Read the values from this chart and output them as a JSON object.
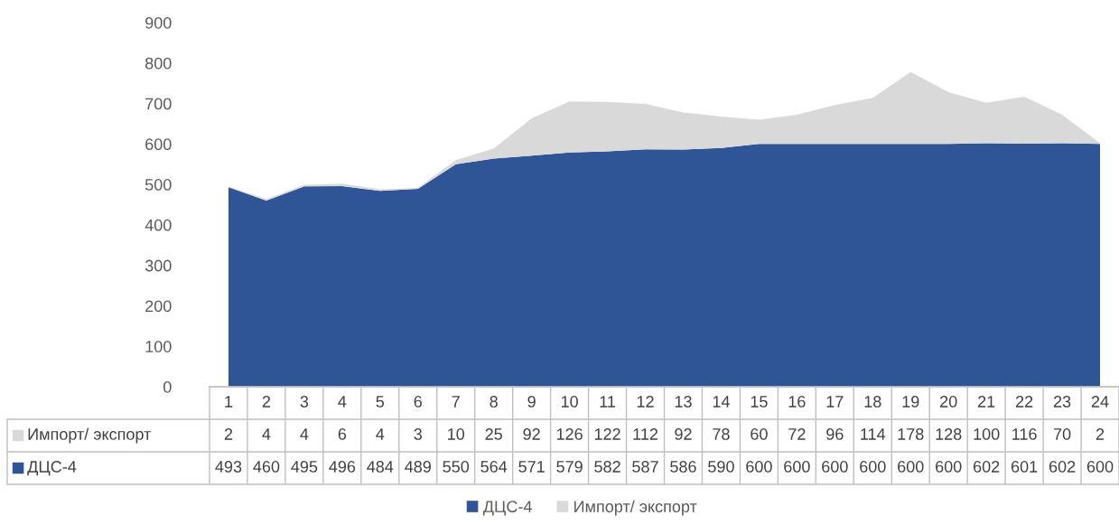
{
  "chart_data": {
    "type": "area",
    "stacked": true,
    "categories": [
      "1",
      "2",
      "3",
      "4",
      "5",
      "6",
      "7",
      "8",
      "9",
      "10",
      "11",
      "12",
      "13",
      "14",
      "15",
      "16",
      "17",
      "18",
      "19",
      "20",
      "21",
      "22",
      "23",
      "24"
    ],
    "series": [
      {
        "name": "ДЦС-4",
        "color": "#2f5597",
        "values": [
          493,
          460,
          495,
          496,
          484,
          489,
          550,
          564,
          571,
          579,
          582,
          587,
          586,
          590,
          600,
          600,
          600,
          600,
          600,
          600,
          602,
          601,
          602,
          600
        ]
      },
      {
        "name": "Импорт/ экспорт",
        "color": "#d9d9d9",
        "values": [
          2,
          4,
          4,
          6,
          4,
          3,
          10,
          25,
          92,
          126,
          122,
          112,
          92,
          78,
          60,
          72,
          96,
          114,
          178,
          128,
          100,
          116,
          70,
          2
        ]
      }
    ],
    "ylim": [
      0,
      900
    ],
    "yticks": [
      0,
      100,
      200,
      300,
      400,
      500,
      600,
      700,
      800,
      900
    ],
    "grid": false,
    "legend": "bottom",
    "data_labels": true
  }
}
